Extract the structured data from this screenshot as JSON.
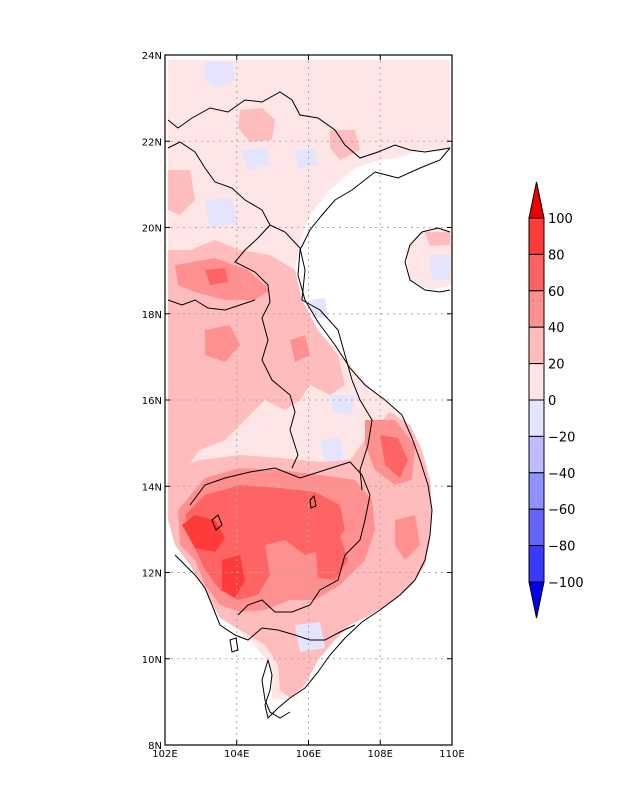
{
  "map": {
    "region": "Indochina",
    "lon_range": [
      102,
      110
    ],
    "lat_range": [
      8,
      24
    ],
    "lon_ticks": [
      "102E",
      "104E",
      "106E",
      "108E",
      "110E"
    ],
    "lat_ticks": [
      "8N",
      "10N",
      "12N",
      "14N",
      "16N",
      "18N",
      "20N",
      "22N",
      "24N"
    ],
    "grid": "dotted gray every 2 degrees",
    "frame_color": "#000000",
    "boundary_color": "#000000"
  },
  "colorbar": {
    "orientation": "vertical",
    "placement": "right",
    "labels": [
      "100",
      "80",
      "60",
      "40",
      "20",
      "0",
      "−20",
      "−40",
      "−60",
      "−80",
      "−100"
    ],
    "levels": [
      100,
      80,
      60,
      40,
      20,
      0,
      -20,
      -40,
      -60,
      -80,
      -100
    ],
    "colors": [
      "#ee0000",
      "#ff3a3a",
      "#ff6464",
      "#ff9090",
      "#ffbcbc",
      "#ffe6e6",
      "#e4e4ff",
      "#bcbcff",
      "#9090ff",
      "#6464ff",
      "#3a3aff",
      "#0000ee"
    ],
    "top_arrow_color": "#ee0000",
    "bottom_arrow_color": "#0000ee"
  },
  "field_colors": {
    "pos0_20": "#ffe6e6",
    "pos20_40": "#ffbcbc",
    "pos40_60": "#ff9090",
    "pos60_80": "#ff6464",
    "pos80_100": "#ff3a3a",
    "neg0_20": "#e4e4ff"
  }
}
